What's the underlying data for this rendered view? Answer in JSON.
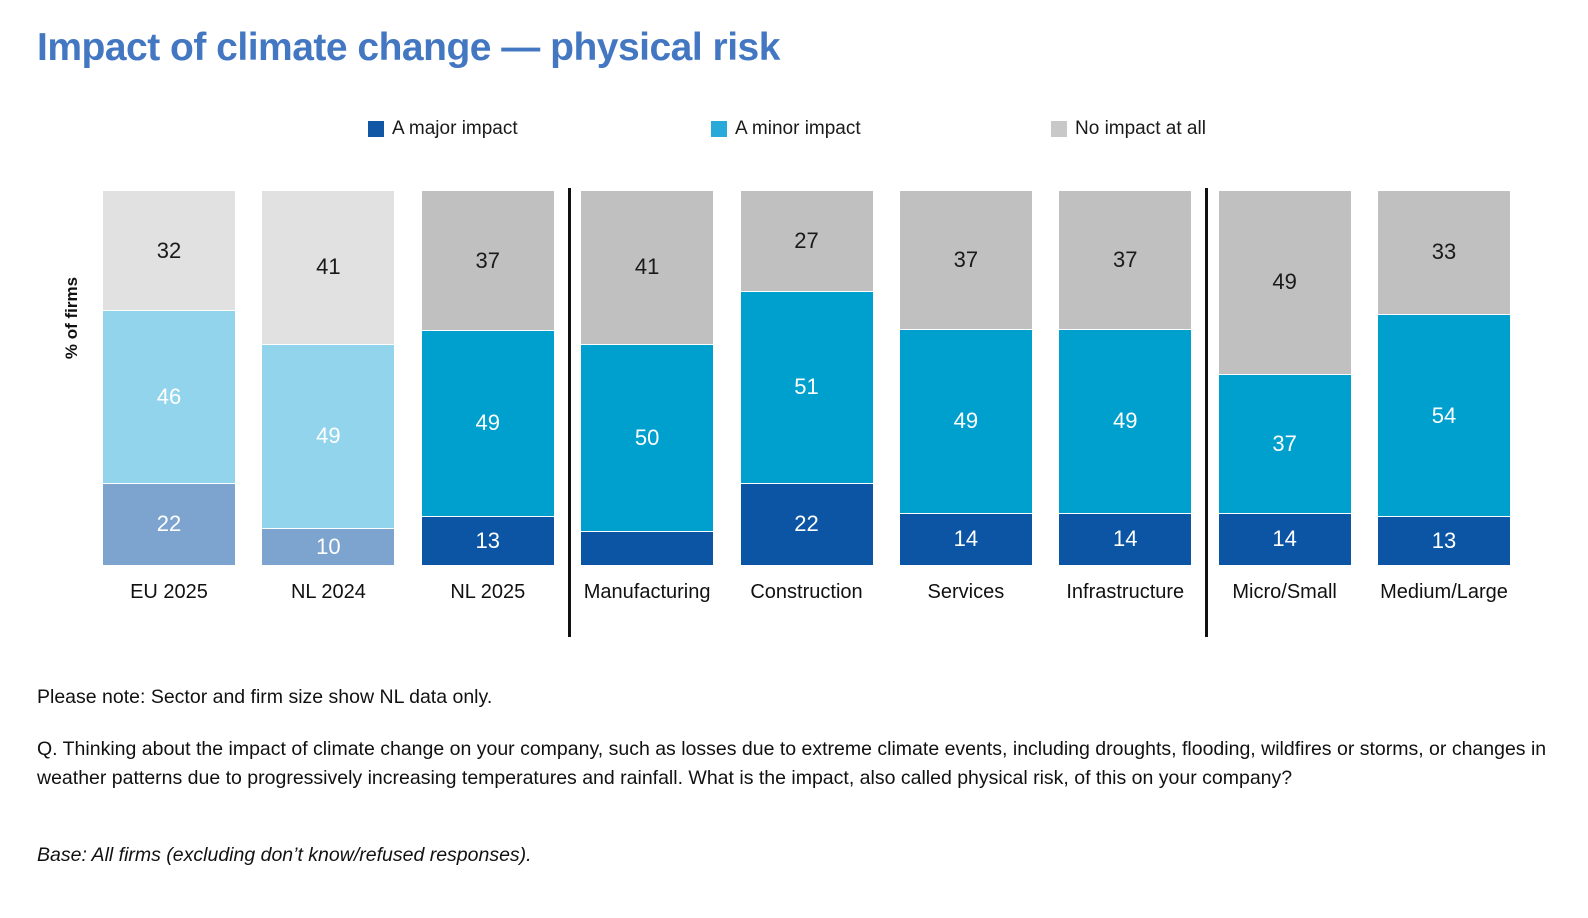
{
  "title": "Impact of climate change — physical risk",
  "legend": [
    {
      "label": "A major impact",
      "color": "#1157a6"
    },
    {
      "label": "A minor impact",
      "color": "#29a9da"
    },
    {
      "label": "No impact at all",
      "color": "#c8c8c8"
    }
  ],
  "ylabel": "% of firms",
  "notes": {
    "note": "Please note: Sector and firm size show NL data only.",
    "question": "Q. Thinking about the impact of climate change on your company, such as losses due to extreme climate events, including droughts, flooding, wildfires or storms, or changes in weather patterns due to progressively increasing temperatures and rainfall. What is the impact, also called physical risk, of this on your company?",
    "base": "Base: All firms (excluding don’t know/refused responses)."
  },
  "chart_data": {
    "type": "bar",
    "subtype": "stacked-100-percent",
    "title": "Impact of climate change — physical risk",
    "ylabel": "% of firms",
    "ylim": [
      0,
      100
    ],
    "grid": false,
    "legend_position": "top",
    "series_names": [
      "A major impact",
      "A minor impact",
      "No impact at all"
    ],
    "palettes": {
      "muted": {
        "fills": [
          "#7da3cf",
          "#92d4ec",
          "#e1e1e1"
        ],
        "label_colors": [
          "#ffffff",
          "#ffffff",
          "#1a1a1a"
        ]
      },
      "vivid": {
        "fills": [
          "#0b55a4",
          "#00a0ce",
          "#c0c0c0"
        ],
        "label_colors": [
          "#ffffff",
          "#ffffff",
          "#1a1a1a"
        ]
      }
    },
    "groups": [
      {
        "label": "EU 2025",
        "palette": "muted",
        "values": [
          22,
          46,
          32
        ],
        "labels": [
          "22",
          "46",
          "32"
        ]
      },
      {
        "label": "NL 2024",
        "palette": "muted",
        "values": [
          10,
          49,
          41
        ],
        "labels": [
          "10",
          "49",
          "41"
        ]
      },
      {
        "label": "NL 2025",
        "palette": "vivid",
        "values": [
          13,
          49,
          37
        ],
        "labels": [
          "13",
          "49",
          "37"
        ]
      },
      {
        "label": "Manufacturing",
        "palette": "vivid",
        "values": [
          9,
          50,
          41
        ],
        "labels": [
          "",
          "50",
          "41"
        ]
      },
      {
        "label": "Construction",
        "palette": "vivid",
        "values": [
          22,
          51,
          27
        ],
        "labels": [
          "22",
          "51",
          "27"
        ]
      },
      {
        "label": "Services",
        "palette": "vivid",
        "values": [
          14,
          49,
          37
        ],
        "labels": [
          "14",
          "49",
          "37"
        ]
      },
      {
        "label": "Infrastructure",
        "palette": "vivid",
        "values": [
          14,
          49,
          37
        ],
        "labels": [
          "14",
          "49",
          "37"
        ]
      },
      {
        "label": "Micro/Small",
        "palette": "vivid",
        "values": [
          14,
          37,
          49
        ],
        "labels": [
          "14",
          "37",
          "49"
        ]
      },
      {
        "label": "Medium/Large",
        "palette": "vivid",
        "values": [
          13,
          54,
          33
        ],
        "labels": [
          "13",
          "54",
          "33"
        ]
      }
    ],
    "dividers_after_group_index": [
      2,
      6
    ]
  }
}
